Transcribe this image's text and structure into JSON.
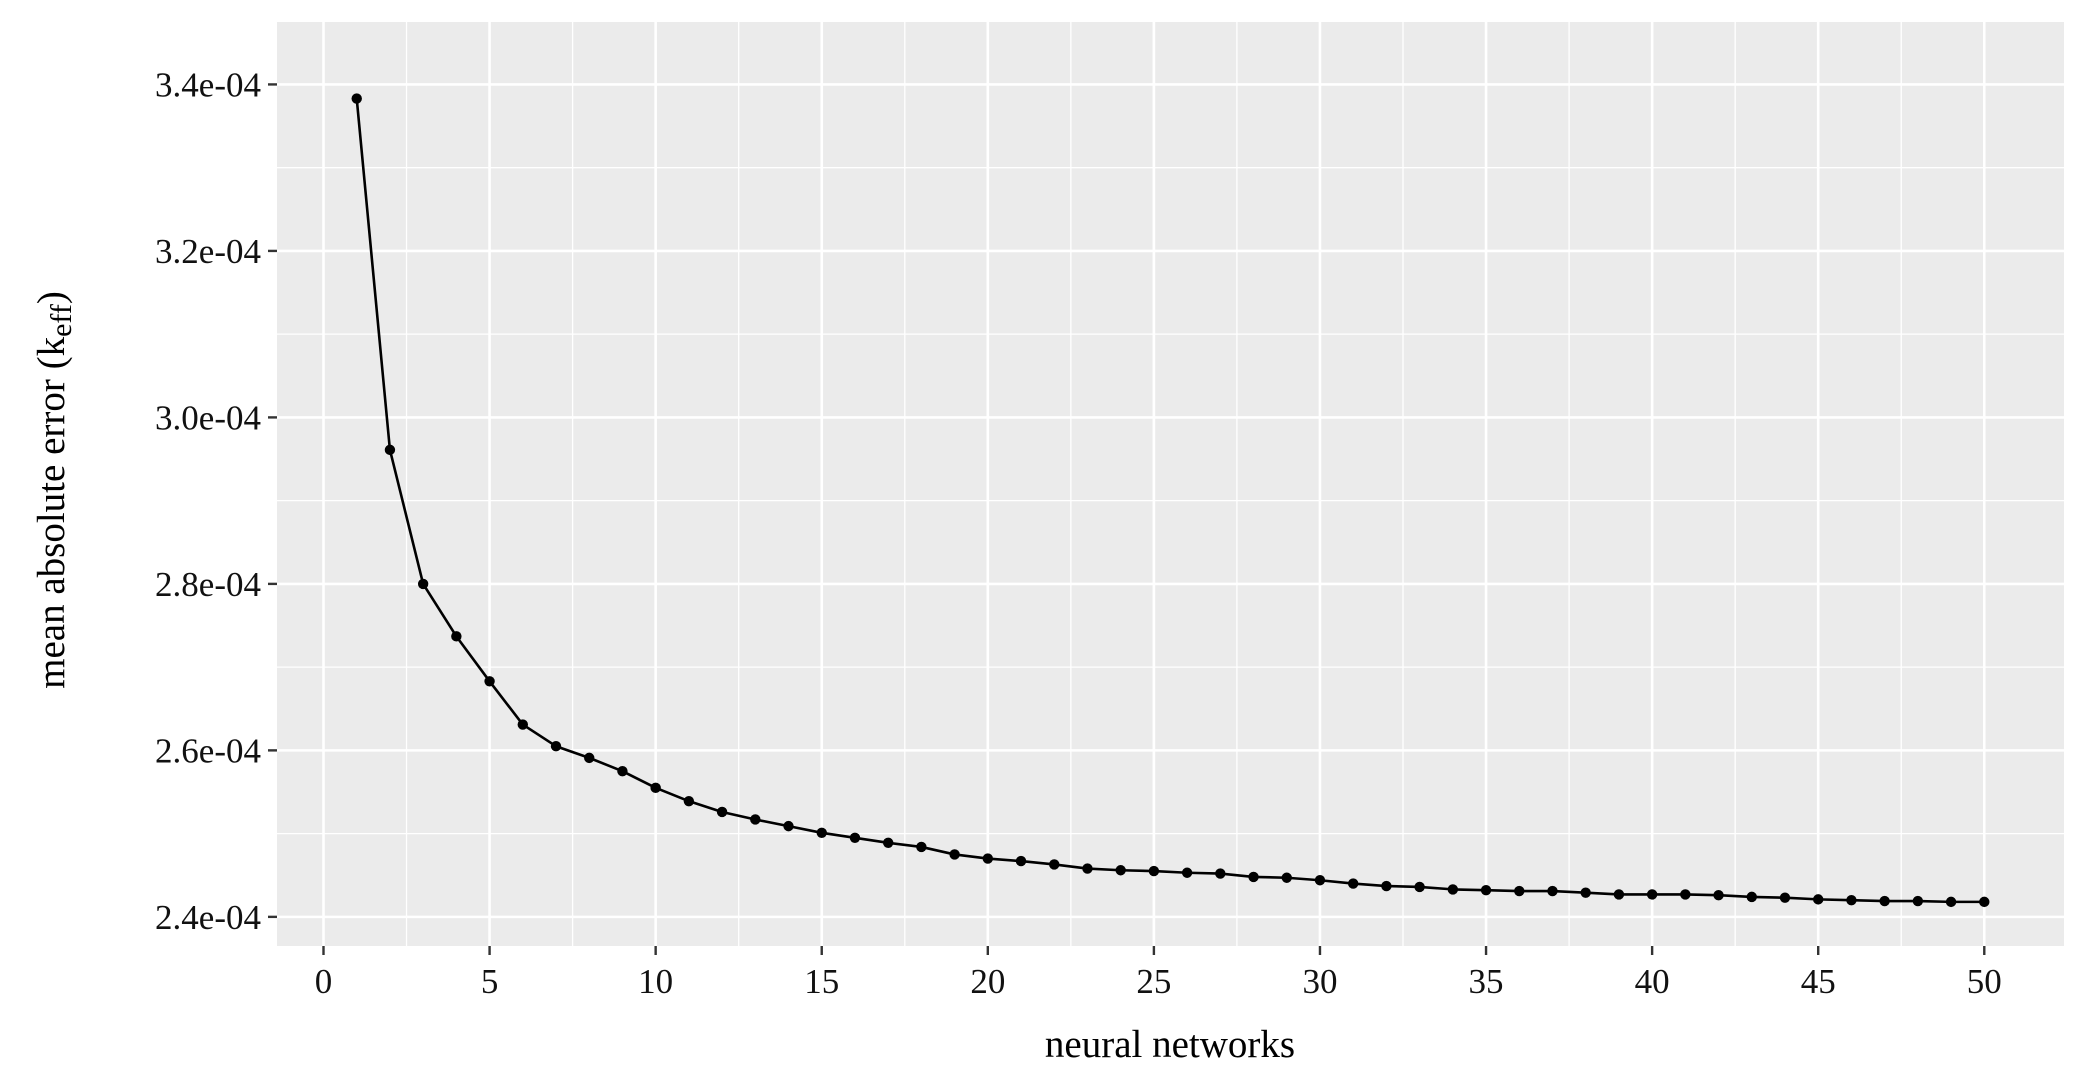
{
  "chart_data": {
    "type": "line",
    "title": "",
    "xlabel": "neural networks",
    "ylabel": {
      "main": "mean absolute error (k",
      "subscript": "eff",
      "close": ")"
    },
    "xlim": [
      -1.4,
      52.4
    ],
    "ylim": [
      0.0002365,
      0.0003475
    ],
    "x_ticks": [
      0,
      5,
      10,
      15,
      20,
      25,
      30,
      35,
      40,
      45,
      50
    ],
    "x_tick_labels": [
      "0",
      "5",
      "10",
      "15",
      "20",
      "25",
      "30",
      "35",
      "40",
      "45",
      "50"
    ],
    "y_ticks": [
      0.00024,
      0.00026,
      0.00028,
      0.0003,
      0.00032,
      0.00034
    ],
    "y_tick_labels": [
      "2.4e-04",
      "2.6e-04",
      "2.8e-04",
      "3.0e-04",
      "3.2e-04",
      "3.4e-04"
    ],
    "grid": true,
    "background": "#ebebeb",
    "series": [
      {
        "color": "#000000",
        "x": [
          1,
          2,
          3,
          4,
          5,
          6,
          7,
          8,
          9,
          10,
          11,
          12,
          13,
          14,
          15,
          16,
          17,
          18,
          19,
          20,
          21,
          22,
          23,
          24,
          25,
          26,
          27,
          28,
          29,
          30,
          31,
          32,
          33,
          34,
          35,
          36,
          37,
          38,
          39,
          40,
          41,
          42,
          43,
          44,
          45,
          46,
          47,
          48,
          49,
          50
        ],
        "values": [
          0.0003383,
          0.0002961,
          0.00028,
          0.0002737,
          0.0002683,
          0.0002631,
          0.0002605,
          0.0002591,
          0.0002575,
          0.0002555,
          0.0002539,
          0.0002526,
          0.0002517,
          0.0002509,
          0.0002501,
          0.0002495,
          0.0002489,
          0.0002484,
          0.0002475,
          0.000247,
          0.0002467,
          0.0002463,
          0.0002458,
          0.0002456,
          0.0002455,
          0.0002453,
          0.0002452,
          0.0002448,
          0.0002447,
          0.0002444,
          0.000244,
          0.0002437,
          0.0002436,
          0.0002433,
          0.0002432,
          0.0002431,
          0.0002431,
          0.0002429,
          0.0002427,
          0.0002427,
          0.0002427,
          0.0002426,
          0.0002424,
          0.0002423,
          0.0002421,
          0.000242,
          0.0002419,
          0.0002419,
          0.0002418,
          0.0002418
        ]
      }
    ]
  }
}
